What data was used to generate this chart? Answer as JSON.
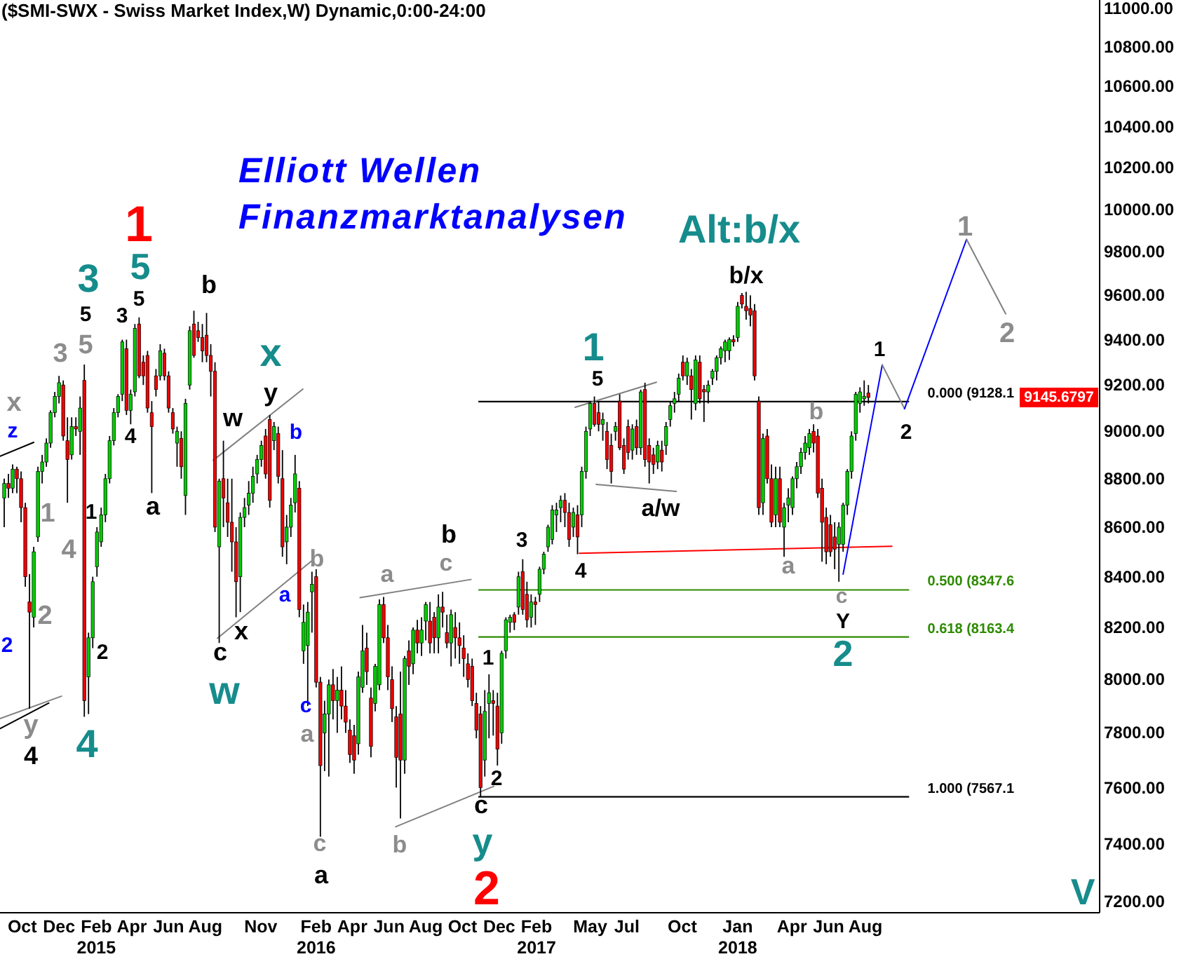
{
  "chart_data": {
    "type": "candlestick",
    "title": "($SMI-SWX - Swiss Market Index,W) Dynamic,0:00-24:00",
    "subtitle": "Elliott Wellen\nFinanzmarktanalysen",
    "log": "y",
    "xlim": [
      "2014-08-25",
      "2019-08-25"
    ],
    "xticks": [
      {
        "value": "2014-10",
        "label": "Oct"
      },
      {
        "value": "2014-12",
        "label": "Dec"
      },
      {
        "value": "2015-02",
        "label": "Feb\n2015"
      },
      {
        "value": "2015-04",
        "label": "Apr"
      },
      {
        "value": "2015-06",
        "label": "Jun"
      },
      {
        "value": "2015-08",
        "label": "Aug"
      },
      {
        "value": "2015-11",
        "label": "Nov"
      },
      {
        "value": "2016-02",
        "label": "Feb\n2016"
      },
      {
        "value": "2016-04",
        "label": "Apr"
      },
      {
        "value": "2016-06",
        "label": "Jun"
      },
      {
        "value": "2016-08",
        "label": "Aug"
      },
      {
        "value": "2016-10",
        "label": "Oct"
      },
      {
        "value": "2016-12",
        "label": "Dec"
      },
      {
        "value": "2017-02",
        "label": "Feb\n2017"
      },
      {
        "value": "2017-05",
        "label": "May"
      },
      {
        "value": "2017-07",
        "label": "Jul"
      },
      {
        "value": "2017-10",
        "label": "Oct"
      },
      {
        "value": "2018-01",
        "label": "Jan\n2018"
      },
      {
        "value": "2018-04",
        "label": "Apr"
      },
      {
        "value": "2018-06",
        "label": "Jun"
      },
      {
        "value": "2018-08",
        "label": "Aug"
      }
    ],
    "ylim": [
      7162,
      11044
    ],
    "yticks": [
      {
        "value": 7200,
        "label": "7200.00"
      },
      {
        "value": 7400,
        "label": "7400.00"
      },
      {
        "value": 7600,
        "label": "7600.00"
      },
      {
        "value": 7800,
        "label": "7800.00"
      },
      {
        "value": 8000,
        "label": "8000.00"
      },
      {
        "value": 8200,
        "label": "8200.00"
      },
      {
        "value": 8400,
        "label": "8400.00"
      },
      {
        "value": 8600,
        "label": "8600.00"
      },
      {
        "value": 8800,
        "label": "8800.00"
      },
      {
        "value": 9000,
        "label": "9000.00"
      },
      {
        "value": 9200,
        "label": "9200.00"
      },
      {
        "value": 9400,
        "label": "9400.00"
      },
      {
        "value": 9600,
        "label": "9600.00"
      },
      {
        "value": 9800,
        "label": "9800.00"
      },
      {
        "value": 10000,
        "label": "10000.00"
      },
      {
        "value": 10200,
        "label": "10200.00"
      },
      {
        "value": 10400,
        "label": "10400.00"
      },
      {
        "value": 10600,
        "label": "10600.00"
      },
      {
        "value": 10800,
        "label": "10800.00"
      },
      {
        "value": 11000,
        "label": "11000.00"
      }
    ],
    "series": [
      {
        "type": "candlestick",
        "x": [
          "2014-09-01",
          "2014-09-08",
          "2014-09-15",
          "2014-09-22",
          "2014-09-29",
          "2014-10-06",
          "2014-10-13",
          "2014-10-20",
          "2014-10-27",
          "2014-11-03",
          "2014-11-10",
          "2014-11-17",
          "2014-11-24",
          "2014-12-01",
          "2014-12-08",
          "2014-12-15",
          "2014-12-22",
          "2014-12-29",
          "2015-01-05",
          "2015-01-12",
          "2015-01-19",
          "2015-01-26",
          "2015-02-02",
          "2015-02-09",
          "2015-02-16",
          "2015-02-23",
          "2015-03-02",
          "2015-03-09",
          "2015-03-16",
          "2015-03-23",
          "2015-03-30",
          "2015-04-06",
          "2015-04-13",
          "2015-04-20",
          "2015-04-27",
          "2015-05-04",
          "2015-05-11",
          "2015-05-18",
          "2015-05-25",
          "2015-06-01",
          "2015-06-08",
          "2015-06-15",
          "2015-06-22",
          "2015-06-29",
          "2015-07-06",
          "2015-07-13",
          "2015-07-20",
          "2015-07-27",
          "2015-08-03",
          "2015-08-10",
          "2015-08-17",
          "2015-08-24",
          "2015-08-31",
          "2015-09-07",
          "2015-09-14",
          "2015-09-21",
          "2015-09-28",
          "2015-10-05",
          "2015-10-12",
          "2015-10-19",
          "2015-10-26",
          "2015-11-02",
          "2015-11-09",
          "2015-11-16",
          "2015-11-23",
          "2015-11-30",
          "2015-12-07",
          "2015-12-14",
          "2015-12-21",
          "2015-12-28",
          "2016-01-04",
          "2016-01-11",
          "2016-01-18",
          "2016-01-25",
          "2016-02-01",
          "2016-02-08",
          "2016-02-15",
          "2016-02-22",
          "2016-02-29",
          "2016-03-07",
          "2016-03-14",
          "2016-03-21",
          "2016-03-28",
          "2016-04-04",
          "2016-04-11",
          "2016-04-18",
          "2016-04-25",
          "2016-05-02",
          "2016-05-09",
          "2016-05-16",
          "2016-05-23",
          "2016-05-30",
          "2016-06-06",
          "2016-06-13",
          "2016-06-20",
          "2016-06-27",
          "2016-07-04",
          "2016-07-11",
          "2016-07-18",
          "2016-07-25",
          "2016-08-01",
          "2016-08-08",
          "2016-08-15",
          "2016-08-22",
          "2016-08-29",
          "2016-09-05",
          "2016-09-12",
          "2016-09-19",
          "2016-09-26",
          "2016-10-03",
          "2016-10-10",
          "2016-10-17",
          "2016-10-24",
          "2016-10-31",
          "2016-11-07",
          "2016-11-14",
          "2016-11-21",
          "2016-11-28",
          "2016-12-05",
          "2016-12-12",
          "2016-12-19",
          "2016-12-26",
          "2017-01-02",
          "2017-01-09",
          "2017-01-16",
          "2017-01-23",
          "2017-01-30",
          "2017-02-06",
          "2017-02-13",
          "2017-02-20",
          "2017-02-27",
          "2017-03-06",
          "2017-03-13",
          "2017-03-20",
          "2017-03-27",
          "2017-04-03",
          "2017-04-10",
          "2017-04-17",
          "2017-04-24",
          "2017-05-01",
          "2017-05-08",
          "2017-05-15",
          "2017-05-22",
          "2017-05-29",
          "2017-06-05",
          "2017-06-12",
          "2017-06-19",
          "2017-06-26",
          "2017-07-03",
          "2017-07-10",
          "2017-07-17",
          "2017-07-24",
          "2017-07-31",
          "2017-08-07",
          "2017-08-14",
          "2017-08-21",
          "2017-08-28",
          "2017-09-04",
          "2017-09-11",
          "2017-09-18",
          "2017-09-25",
          "2017-10-02",
          "2017-10-09",
          "2017-10-16",
          "2017-10-23",
          "2017-10-30",
          "2017-11-06",
          "2017-11-13",
          "2017-11-20",
          "2017-11-27",
          "2017-12-04",
          "2017-12-11",
          "2017-12-18",
          "2017-12-25",
          "2018-01-01",
          "2018-01-08",
          "2018-01-15",
          "2018-01-22",
          "2018-01-29",
          "2018-02-05",
          "2018-02-12",
          "2018-02-19",
          "2018-02-26",
          "2018-03-05",
          "2018-03-12",
          "2018-03-19",
          "2018-03-26",
          "2018-04-02",
          "2018-04-09",
          "2018-04-16",
          "2018-04-23",
          "2018-04-30",
          "2018-05-07",
          "2018-05-14",
          "2018-05-21",
          "2018-05-28",
          "2018-06-04",
          "2018-06-11",
          "2018-06-18",
          "2018-06-25",
          "2018-07-02",
          "2018-07-09",
          "2018-07-16",
          "2018-07-23",
          "2018-07-30",
          "2018-08-06"
        ],
        "ohlc": [
          [
            8720,
            8800,
            8600,
            8780
          ],
          [
            8780,
            8820,
            8720,
            8760
          ],
          [
            8760,
            8860,
            8740,
            8840
          ],
          [
            8840,
            8850,
            8740,
            8800
          ],
          [
            8800,
            8830,
            8620,
            8680
          ],
          [
            8680,
            8700,
            8360,
            8400
          ],
          [
            8300,
            8410,
            7890,
            8260
          ],
          [
            8240,
            8520,
            8200,
            8500
          ],
          [
            8560,
            8850,
            8540,
            8830
          ],
          [
            8830,
            8900,
            8780,
            8870
          ],
          [
            8870,
            8970,
            8850,
            8950
          ],
          [
            8950,
            9090,
            8930,
            9080
          ],
          [
            9080,
            9170,
            9060,
            9150
          ],
          [
            9150,
            9240,
            9120,
            9210
          ],
          [
            9200,
            9220,
            8960,
            8980
          ],
          [
            8960,
            9060,
            8700,
            8880
          ],
          [
            8900,
            9060,
            8880,
            9020
          ],
          [
            9020,
            9060,
            8980,
            9010
          ],
          [
            9000,
            9150,
            8900,
            9100
          ],
          [
            9220,
            9290,
            7860,
            7920
          ],
          [
            8010,
            8180,
            7870,
            8160
          ],
          [
            8160,
            8400,
            8120,
            8380
          ],
          [
            8440,
            8600,
            8400,
            8580
          ],
          [
            8540,
            8680,
            8520,
            8650
          ],
          [
            8650,
            8820,
            8620,
            8800
          ],
          [
            8800,
            8980,
            8780,
            8960
          ],
          [
            8960,
            9100,
            8940,
            9080
          ],
          [
            9080,
            9160,
            9060,
            9150
          ],
          [
            9160,
            9400,
            9130,
            9390
          ],
          [
            9360,
            9400,
            9070,
            9090
          ],
          [
            9090,
            9180,
            9030,
            9160
          ],
          [
            9170,
            9470,
            9150,
            9450
          ],
          [
            9470,
            9500,
            9230,
            9240
          ],
          [
            9300,
            9330,
            9200,
            9240
          ],
          [
            9330,
            9350,
            9080,
            9100
          ],
          [
            9080,
            9130,
            8740,
            9020
          ],
          [
            9240,
            9270,
            9150,
            9180
          ],
          [
            9240,
            9380,
            9220,
            9350
          ],
          [
            9340,
            9360,
            9220,
            9240
          ],
          [
            9240,
            9260,
            9080,
            9100
          ],
          [
            9080,
            9100,
            8990,
            9010
          ],
          [
            8950,
            9020,
            8850,
            9000
          ],
          [
            8970,
            9000,
            8800,
            8850
          ],
          [
            8730,
            9140,
            8650,
            9120
          ],
          [
            9200,
            9460,
            9180,
            9440
          ],
          [
            9470,
            9530,
            9320,
            9330
          ],
          [
            9440,
            9480,
            9390,
            9410
          ],
          [
            9410,
            9470,
            9300,
            9350
          ],
          [
            9420,
            9520,
            9300,
            9330
          ],
          [
            9330,
            9380,
            9150,
            9260
          ],
          [
            9260,
            9300,
            8580,
            8600
          ],
          [
            8520,
            8800,
            8140,
            8790
          ],
          [
            8800,
            8960,
            8600,
            8720
          ],
          [
            8700,
            8800,
            8560,
            8620
          ],
          [
            8620,
            8800,
            8420,
            8540
          ],
          [
            8540,
            8600,
            8240,
            8380
          ],
          [
            8400,
            8660,
            8260,
            8640
          ],
          [
            8640,
            8720,
            8600,
            8680
          ],
          [
            8690,
            8790,
            8650,
            8740
          ],
          [
            8740,
            8850,
            8700,
            8810
          ],
          [
            8820,
            8900,
            8780,
            8880
          ],
          [
            8880,
            8960,
            8850,
            8940
          ],
          [
            8980,
            9010,
            8800,
            8820
          ],
          [
            9050,
            9070,
            8680,
            8710
          ],
          [
            8960,
            9040,
            8920,
            9020
          ],
          [
            8990,
            9020,
            8780,
            8810
          ],
          [
            8800,
            8920,
            8480,
            8520
          ],
          [
            8540,
            8650,
            8450,
            8600
          ],
          [
            8600,
            8720,
            8560,
            8690
          ],
          [
            8700,
            8900,
            8660,
            8820
          ],
          [
            8760,
            8790,
            8240,
            8270
          ],
          [
            8110,
            8290,
            8060,
            8220
          ],
          [
            8130,
            8300,
            7900,
            8260
          ],
          [
            8340,
            8420,
            8180,
            8370
          ],
          [
            8400,
            8430,
            7970,
            7990
          ],
          [
            7990,
            8010,
            7425,
            7680
          ],
          [
            7800,
            7920,
            7660,
            7870
          ],
          [
            7870,
            8000,
            7640,
            7980
          ],
          [
            7980,
            8040,
            7850,
            7920
          ],
          [
            7920,
            8010,
            7800,
            7960
          ],
          [
            7960,
            8050,
            7850,
            7900
          ],
          [
            7900,
            7960,
            7800,
            7840
          ],
          [
            7810,
            7850,
            7690,
            7720
          ],
          [
            7790,
            7830,
            7650,
            7700
          ],
          [
            7760,
            8030,
            7720,
            8010
          ],
          [
            7970,
            8210,
            7950,
            8110
          ],
          [
            8120,
            8180,
            7980,
            8030
          ],
          [
            7930,
            7970,
            7710,
            7750
          ],
          [
            7910,
            8060,
            7880,
            8050
          ],
          [
            7980,
            8310,
            7960,
            8290
          ],
          [
            8290,
            8320,
            8140,
            8160
          ],
          [
            8160,
            8210,
            7960,
            8010
          ],
          [
            8000,
            8050,
            7840,
            7890
          ],
          [
            7860,
            7900,
            7600,
            7710
          ],
          [
            7870,
            8030,
            7490,
            7700
          ],
          [
            7700,
            8090,
            7650,
            8080
          ],
          [
            8110,
            8150,
            7980,
            8050
          ],
          [
            8060,
            8200,
            8020,
            8190
          ],
          [
            8190,
            8230,
            8100,
            8140
          ],
          [
            8140,
            8240,
            8090,
            8190
          ],
          [
            8225,
            8300,
            8150,
            8290
          ],
          [
            8225,
            8300,
            8100,
            8140
          ],
          [
            8240,
            8260,
            8100,
            8160
          ],
          [
            8160,
            8330,
            8100,
            8280
          ],
          [
            8280,
            8340,
            8200,
            8260
          ],
          [
            8180,
            8250,
            8120,
            8140
          ],
          [
            8140,
            8270,
            8050,
            8250
          ],
          [
            8200,
            8260,
            8080,
            8160
          ],
          [
            8160,
            8220,
            8060,
            8130
          ],
          [
            8120,
            8170,
            8010,
            8080
          ],
          [
            8060,
            8100,
            7970,
            8000
          ],
          [
            8050,
            8080,
            7900,
            7920
          ],
          [
            7910,
            7950,
            7780,
            7810
          ],
          [
            7870,
            7900,
            7567,
            7600
          ],
          [
            7700,
            7960,
            7640,
            7880
          ],
          [
            7910,
            8020,
            7780,
            7950
          ],
          [
            7920,
            7960,
            7790,
            7910
          ],
          [
            7900,
            7950,
            7680,
            7740
          ],
          [
            7800,
            8110,
            7760,
            8100
          ],
          [
            8110,
            8240,
            8080,
            8230
          ],
          [
            8220,
            8250,
            8180,
            8240
          ],
          [
            8250,
            8260,
            8190,
            8220
          ],
          [
            8280,
            8420,
            8250,
            8400
          ],
          [
            8420,
            8470,
            8250,
            8270
          ],
          [
            8330,
            8380,
            8200,
            8230
          ],
          [
            8240,
            8330,
            8200,
            8300
          ],
          [
            8300,
            8320,
            8210,
            8290
          ],
          [
            8330,
            8440,
            8300,
            8430
          ],
          [
            8430,
            8500,
            8410,
            8490
          ],
          [
            8520,
            8610,
            8500,
            8600
          ],
          [
            8550,
            8690,
            8530,
            8670
          ],
          [
            8650,
            8700,
            8580,
            8670
          ],
          [
            8680,
            8730,
            8620,
            8710
          ],
          [
            8710,
            8740,
            8600,
            8660
          ],
          [
            8660,
            8700,
            8520,
            8550
          ],
          [
            8600,
            8680,
            8560,
            8660
          ],
          [
            8650,
            8690,
            8490,
            8560
          ],
          [
            8650,
            8850,
            8600,
            8830
          ],
          [
            8830,
            9020,
            8800,
            9000
          ],
          [
            9010,
            9130,
            8980,
            9120
          ],
          [
            9120,
            9150,
            9020,
            9030
          ],
          [
            9080,
            9130,
            9000,
            9030
          ],
          [
            9030,
            9080,
            8960,
            9050
          ],
          [
            9000,
            9040,
            8840,
            8880
          ],
          [
            8940,
            8990,
            8780,
            8830
          ],
          [
            9000,
            9040,
            8960,
            9020
          ],
          [
            9130,
            9160,
            8920,
            8930
          ],
          [
            8940,
            8970,
            8820,
            8840
          ],
          [
            9020,
            9050,
            8880,
            8910
          ],
          [
            8920,
            9030,
            8880,
            9010
          ],
          [
            9020,
            9050,
            8900,
            8930
          ],
          [
            8930,
            9180,
            8900,
            9170
          ],
          [
            9180,
            9210,
            8850,
            8880
          ],
          [
            8940,
            8970,
            8780,
            8870
          ],
          [
            8900,
            8930,
            8820,
            8860
          ],
          [
            8870,
            8960,
            8840,
            8940
          ],
          [
            8920,
            8960,
            8830,
            8870
          ],
          [
            8940,
            9040,
            8900,
            9020
          ],
          [
            9050,
            9130,
            9020,
            9110
          ],
          [
            9120,
            9170,
            9080,
            9140
          ],
          [
            9160,
            9250,
            9130,
            9230
          ],
          [
            9300,
            9330,
            9220,
            9240
          ],
          [
            9240,
            9320,
            9200,
            9300
          ],
          [
            9240,
            9270,
            9050,
            9180
          ],
          [
            9120,
            9330,
            9090,
            9310
          ],
          [
            9300,
            9330,
            9120,
            9140
          ],
          [
            9180,
            9200,
            9040,
            9170
          ],
          [
            9170,
            9220,
            9120,
            9200
          ],
          [
            9230,
            9270,
            9200,
            9260
          ],
          [
            9260,
            9330,
            9220,
            9320
          ],
          [
            9320,
            9370,
            9290,
            9360
          ],
          [
            9350,
            9400,
            9300,
            9390
          ],
          [
            9350,
            9410,
            9310,
            9400
          ],
          [
            9400,
            9420,
            9370,
            9390
          ],
          [
            9410,
            9570,
            9390,
            9550
          ],
          [
            9600,
            9610,
            9540,
            9560
          ],
          [
            9550,
            9616,
            9490,
            9530
          ],
          [
            9540,
            9600,
            9460,
            9510
          ],
          [
            9530,
            9560,
            9220,
            9240
          ],
          [
            9130,
            9150,
            8650,
            8680
          ],
          [
            8700,
            8990,
            8650,
            8970
          ],
          [
            8980,
            9010,
            8780,
            8800
          ],
          [
            8800,
            8860,
            8600,
            8620
          ],
          [
            8650,
            8850,
            8600,
            8800
          ],
          [
            8800,
            8850,
            8600,
            8620
          ],
          [
            8600,
            8700,
            8480,
            8680
          ],
          [
            8690,
            8760,
            8620,
            8720
          ],
          [
            8680,
            8810,
            8650,
            8800
          ],
          [
            8800,
            8870,
            8760,
            8850
          ],
          [
            8850,
            8930,
            8820,
            8910
          ],
          [
            8910,
            8980,
            8880,
            8950
          ],
          [
            8930,
            9010,
            8900,
            8990
          ],
          [
            9000,
            9030,
            8910,
            8950
          ],
          [
            8980,
            9010,
            8720,
            8740
          ],
          [
            8760,
            8800,
            8460,
            8620
          ],
          [
            8640,
            8680,
            8450,
            8500
          ],
          [
            8610,
            8650,
            8480,
            8500
          ],
          [
            8560,
            8620,
            8430,
            8510
          ],
          [
            8530,
            8620,
            8380,
            8600
          ],
          [
            8530,
            8700,
            8500,
            8690
          ],
          [
            8690,
            8840,
            8650,
            8830
          ],
          [
            8830,
            9000,
            8800,
            8980
          ],
          [
            8990,
            9170,
            8960,
            9160
          ],
          [
            9120,
            9190,
            9080,
            9170
          ],
          [
            9140,
            9220,
            9110,
            9150
          ],
          [
            9165,
            9200,
            9120,
            9145.6797
          ]
        ],
        "colors": [
          "#00cc00",
          "#ee0000",
          "#00cc00",
          "#ee0000",
          "#ee0000",
          "#ee0000",
          "#ee0000",
          "#00cc00",
          "#00cc00",
          "#00cc00",
          "#00cc00",
          "#00cc00",
          "#00cc00",
          "#00cc00",
          "#ee0000",
          "#ee0000",
          "#00cc00",
          "#ee0000",
          "#00cc00",
          "#ee0000",
          "#00cc00",
          "#00cc00",
          "#00cc00",
          "#00cc00",
          "#00cc00",
          "#00cc00",
          "#00cc00",
          "#00cc00",
          "#00cc00",
          "#ee0000",
          "#00cc00",
          "#00cc00",
          "#ee0000",
          "#ee0000",
          "#ee0000",
          "#ee0000",
          "#ee0000",
          "#00cc00",
          "#ee0000",
          "#ee0000",
          "#ee0000",
          "#00cc00",
          "#ee0000",
          "#00cc00",
          "#00cc00",
          "#ee0000",
          "#ee0000",
          "#ee0000",
          "#ee0000",
          "#ee0000",
          "#ee0000",
          "#00cc00",
          "#ee0000",
          "#ee0000",
          "#ee0000",
          "#ee0000",
          "#00cc00",
          "#00cc00",
          "#00cc00",
          "#00cc00",
          "#00cc00",
          "#00cc00",
          "#ee0000",
          "#ee0000",
          "#00cc00",
          "#ee0000",
          "#ee0000",
          "#00cc00",
          "#00cc00",
          "#00cc00",
          "#ee0000",
          "#00cc00",
          "#00cc00",
          "#00cc00",
          "#ee0000",
          "#ee0000",
          "#00cc00",
          "#00cc00",
          "#ee0000",
          "#00cc00",
          "#ee0000",
          "#ee0000",
          "#ee0000",
          "#ee0000",
          "#00cc00",
          "#00cc00",
          "#ee0000",
          "#ee0000",
          "#00cc00",
          "#00cc00",
          "#ee0000",
          "#ee0000",
          "#ee0000",
          "#ee0000",
          "#ee0000",
          "#00cc00",
          "#ee0000",
          "#00cc00",
          "#ee0000",
          "#00cc00",
          "#00cc00",
          "#ee0000",
          "#ee0000",
          "#00cc00",
          "#ee0000",
          "#ee0000",
          "#00cc00",
          "#ee0000",
          "#ee0000",
          "#ee0000",
          "#ee0000",
          "#ee0000",
          "#ee0000",
          "#ee0000",
          "#00cc00",
          "#00cc00",
          "#ee0000",
          "#ee0000",
          "#00cc00",
          "#00cc00",
          "#00cc00",
          "#ee0000",
          "#00cc00",
          "#ee0000",
          "#ee0000",
          "#00cc00",
          "#ee0000",
          "#00cc00",
          "#00cc00",
          "#00cc00",
          "#00cc00",
          "#00cc00",
          "#00cc00",
          "#ee0000",
          "#ee0000",
          "#00cc00",
          "#ee0000",
          "#00cc00",
          "#00cc00",
          "#00cc00",
          "#ee0000",
          "#ee0000",
          "#00cc00",
          "#ee0000",
          "#ee0000",
          "#00cc00",
          "#ee0000",
          "#ee0000",
          "#ee0000",
          "#00cc00",
          "#ee0000",
          "#00cc00",
          "#ee0000",
          "#ee0000",
          "#ee0000",
          "#00cc00",
          "#ee0000",
          "#00cc00",
          "#00cc00",
          "#00cc00",
          "#00cc00",
          "#ee0000",
          "#00cc00",
          "#ee0000",
          "#00cc00",
          "#ee0000",
          "#ee0000",
          "#00cc00",
          "#00cc00",
          "#00cc00",
          "#00cc00",
          "#00cc00",
          "#00cc00",
          "#ee0000",
          "#00cc00",
          "#ee0000",
          "#ee0000",
          "#ee0000",
          "#ee0000",
          "#ee0000",
          "#00cc00",
          "#ee0000",
          "#ee0000",
          "#00cc00",
          "#ee0000",
          "#00cc00",
          "#00cc00",
          "#00cc00",
          "#00cc00",
          "#00cc00",
          "#00cc00",
          "#00cc00",
          "#ee0000",
          "#ee0000",
          "#ee0000",
          "#ee0000",
          "#ee0000",
          "#ee0000",
          "#00cc00",
          "#00cc00",
          "#00cc00",
          "#00cc00",
          "#00cc00",
          "#00cc00",
          "#00cc00",
          "#ee0000"
        ]
      },
      {
        "type": "line",
        "x": [
          "2014-08-25",
          "2014-10-20"
        ],
        "values": [
          8894,
          8953
        ],
        "color": "#000000"
      },
      {
        "type": "line",
        "x": [
          "2014-08-25",
          "2014-11-14"
        ],
        "values": [
          7816,
          7911
        ],
        "color": "#000000"
      },
      {
        "type": "line",
        "x": [
          "2014-08-25",
          "2014-12-05"
        ],
        "values": [
          7853,
          7937
        ],
        "color": "#808080"
      },
      {
        "type": "line",
        "x": [
          "2015-08-14",
          "2016-01-10"
        ],
        "values": [
          8877,
          9182
        ],
        "color": "#808080"
      },
      {
        "type": "line",
        "x": [
          "2015-08-21",
          "2016-01-24"
        ],
        "values": [
          8158,
          8462
        ],
        "color": "#808080"
      },
      {
        "type": "line",
        "x": [
          "2016-04-14",
          "2016-10-15"
        ],
        "values": [
          8317,
          8389
        ],
        "color": "#808080"
      },
      {
        "type": "line",
        "x": [
          "2016-06-12",
          "2016-11-22"
        ],
        "values": [
          7460,
          7605
        ],
        "color": "#808080"
      },
      {
        "type": "line",
        "x": [
          "2017-04-06",
          "2017-08-19"
        ],
        "values": [
          9103,
          9212
        ],
        "color": "#808080"
      },
      {
        "type": "line",
        "x": [
          "2017-05-11",
          "2017-09-21"
        ],
        "values": [
          8776,
          8747
        ],
        "color": "#808080"
      },
      {
        "type": "line",
        "x": [
          "2017-04-13",
          "2018-09-14"
        ],
        "values": [
          8494,
          8522
        ],
        "color": "#ff0000"
      },
      {
        "type": "line",
        "x": [
          "2018-06-25",
          "2018-08-29"
        ],
        "values": [
          8410,
          9288
        ],
        "color": "#0000ff"
      },
      {
        "type": "line",
        "x": [
          "2018-08-29",
          "2018-10-05"
        ],
        "values": [
          9288,
          9097
        ],
        "color": "#808080"
      },
      {
        "type": "line",
        "x": [
          "2018-10-05",
          "2019-01-16"
        ],
        "values": [
          9097,
          9858
        ],
        "color": "#0000ff"
      },
      {
        "type": "line",
        "x": [
          "2019-01-16",
          "2019-03-22"
        ],
        "values": [
          9858,
          9516
        ],
        "color": "#808080"
      }
    ],
    "ref_lines": [
      {
        "axis": "y",
        "value": 9128.1,
        "label": "0.000 (9128.1",
        "color": "#000000"
      },
      {
        "axis": "y",
        "value": 8347.6,
        "label": "0.500 (8347.6",
        "color": "#2e8b00"
      },
      {
        "axis": "y",
        "value": 8163.4,
        "label": "0.618 (8163.4",
        "color": "#2e8b00"
      },
      {
        "axis": "y",
        "value": 7567.1,
        "label": "1.000 (7567.1",
        "color": "#000000"
      }
    ],
    "annotations": [
      "1",
      "2",
      "3",
      "5",
      "4",
      "x",
      "w",
      "y",
      "1",
      "Alt:b/x",
      "2",
      "V",
      "5",
      "3",
      "5",
      "4",
      "a",
      "b",
      "w",
      "y",
      "c",
      "x",
      "a",
      "b",
      "1",
      "2",
      "c",
      "3",
      "4",
      "5",
      "a/w",
      "b/x",
      "Y",
      "1",
      "2",
      "4",
      "2",
      "1",
      "x",
      "3",
      "5",
      "4",
      "1",
      "2",
      "y",
      "b",
      "a",
      "c",
      "a",
      "b",
      "c",
      "a",
      "b",
      "c",
      "1",
      "2",
      "z",
      "b",
      "a",
      "c",
      "2",
      "9145.6797"
    ]
  }
}
